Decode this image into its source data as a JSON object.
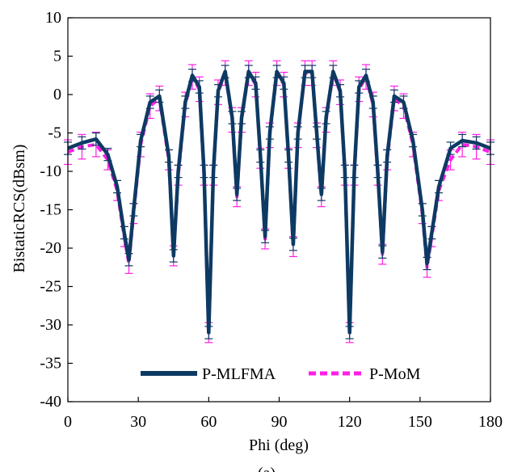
{
  "caption": "(a)",
  "chart_data": {
    "type": "line",
    "xlabel": "Phi (deg)",
    "ylabel": "BistaticRCS(dBsm)",
    "xlim": [
      0,
      180
    ],
    "ylim": [
      -40,
      10
    ],
    "xticks": [
      0,
      30,
      60,
      90,
      120,
      150,
      180
    ],
    "yticks": [
      10,
      5,
      0,
      -5,
      -10,
      -15,
      -20,
      -25,
      -30,
      -35,
      -40
    ],
    "grid": false,
    "legend_position": "bottom",
    "error_bars": true,
    "series": [
      {
        "name": "P-MLFMA",
        "color": "#0d3a63",
        "style": "solid",
        "x": [
          0,
          6,
          12,
          17,
          21,
          24,
          26,
          28,
          31,
          35,
          39,
          43,
          45,
          47,
          50,
          53,
          56,
          58,
          60,
          62,
          64,
          67,
          70,
          72,
          74,
          77,
          80,
          82,
          84,
          86,
          89,
          92,
          94,
          96,
          98,
          101,
          104,
          106,
          108,
          110,
          113,
          116,
          118,
          120,
          122,
          124,
          127,
          130,
          132,
          134,
          136,
          139,
          143,
          147,
          151,
          153,
          155,
          158,
          163,
          168,
          174,
          180
        ],
        "y": [
          -7,
          -6.3,
          -5.8,
          -7.8,
          -12,
          -18,
          -21.5,
          -15,
          -6,
          -1,
          -0.2,
          -8,
          -21,
          -10,
          -1,
          2.5,
          1,
          -10,
          -31,
          -10,
          0.5,
          3,
          -3,
          -13,
          -3,
          3,
          1.5,
          -8,
          -18.5,
          -5,
          3,
          1.5,
          -8,
          -19.5,
          -5,
          3,
          3,
          -5,
          -13,
          -3,
          3,
          0.5,
          -10,
          -31,
          -10,
          1,
          2.5,
          -1,
          -10,
          -20.5,
          -8,
          -0.2,
          -1,
          -6,
          -15,
          -22,
          -18,
          -12,
          -7,
          -6,
          -6.3,
          -7
        ]
      },
      {
        "name": "P-MoM",
        "color": "#ff1fe6",
        "style": "dashed",
        "x": [
          0,
          6,
          12,
          17,
          21,
          24,
          26,
          28,
          31,
          35,
          39,
          43,
          45,
          47,
          50,
          53,
          56,
          58,
          60,
          62,
          64,
          67,
          70,
          72,
          74,
          77,
          80,
          82,
          84,
          86,
          89,
          92,
          94,
          96,
          98,
          101,
          104,
          106,
          108,
          110,
          113,
          116,
          118,
          120,
          122,
          124,
          127,
          130,
          132,
          134,
          136,
          139,
          143,
          147,
          151,
          153,
          155,
          158,
          163,
          168,
          174,
          180
        ],
        "y": [
          -7.5,
          -6.8,
          -6.5,
          -8.5,
          -12.5,
          -18.5,
          -22,
          -15.5,
          -6.5,
          -1.5,
          -0.5,
          -8.5,
          -21,
          -10.5,
          -1.3,
          2.3,
          0.7,
          -10.5,
          -31,
          -10.5,
          0.3,
          2.8,
          -3.3,
          -13.3,
          -3.3,
          2.8,
          1.3,
          -8.3,
          -18.8,
          -5.3,
          2.8,
          1.3,
          -8.3,
          -19.8,
          -5.3,
          2.8,
          2.8,
          -5.3,
          -13.3,
          -3.3,
          2.8,
          0.3,
          -10.5,
          -31,
          -10.5,
          0.7,
          2.3,
          -1.3,
          -10.5,
          -20.8,
          -8.5,
          -0.5,
          -1.5,
          -6.5,
          -15.5,
          -22.5,
          -18.5,
          -12.5,
          -8.5,
          -6.5,
          -6.8,
          -7.5
        ]
      }
    ]
  }
}
